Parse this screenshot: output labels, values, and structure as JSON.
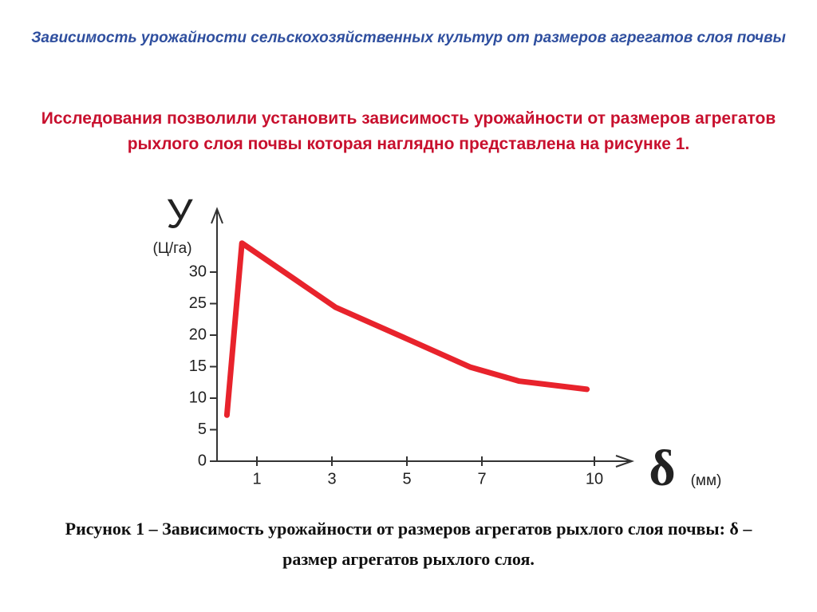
{
  "slide": {
    "title": "Зависимость урожайности  сельскохозяйственных культур от размеров агрегатов  слоя почвы",
    "text": "Исследования позволили установить зависимость урожайности от размеров агрегатов рыхлого слоя почвы которая наглядно представлена на рисунке 1.",
    "caption": "Рисунок 1 – Зависимость урожайности от размеров агрегатов рыхлого слоя почвы: δ – размер агрегатов рыхлого слоя."
  },
  "chart_data": {
    "type": "line",
    "y_label": "У",
    "y_unit": "(Ц/га)",
    "x_label": "δ",
    "x_unit": "(мм)",
    "x": [
      0.2,
      0.6,
      2.0,
      3.1,
      5.0,
      6.7,
      8.0,
      9.8
    ],
    "values": [
      7.3,
      34.6,
      28.9,
      24.4,
      19.4,
      14.9,
      12.7,
      11.4
    ],
    "color": "#e8232c",
    "xlim": [
      0,
      11
    ],
    "xticks": [
      1,
      3,
      5,
      7,
      10
    ],
    "ylim": [
      0,
      40
    ],
    "yticks": [
      0,
      5,
      10,
      15,
      20,
      25,
      30
    ]
  }
}
